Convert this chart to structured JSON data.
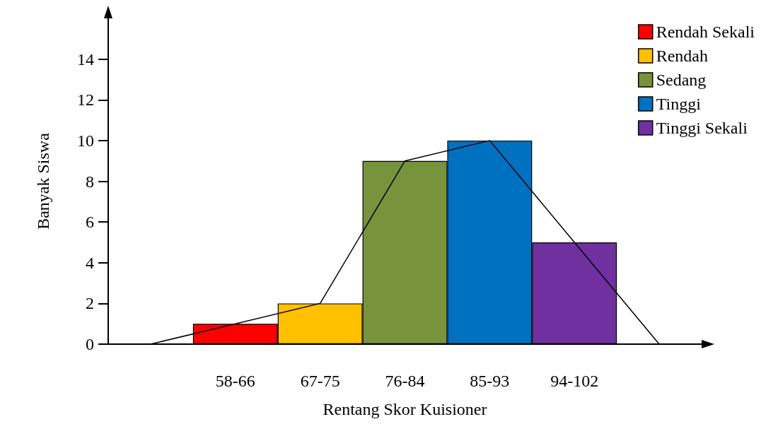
{
  "chart_data": {
    "type": "bar",
    "xlabel": "Rentang Skor Kuisioner",
    "ylabel": "Banyak Siswa",
    "categories": [
      null,
      "58-66",
      "67-75",
      "76-84",
      "85-93",
      "94-102",
      null
    ],
    "stacked": true,
    "series": [
      {
        "name": "Rendah Sekali",
        "color": "#ff0000",
        "values": [
          null,
          1,
          null,
          null,
          null,
          null,
          null
        ]
      },
      {
        "name": "Rendah",
        "color": "#ffc000",
        "values": [
          null,
          null,
          2,
          null,
          null,
          null,
          null
        ]
      },
      {
        "name": "Sedang",
        "color": "#77933c",
        "values": [
          null,
          null,
          null,
          9,
          null,
          null,
          null
        ]
      },
      {
        "name": "Tinggi",
        "color": "#0070c0",
        "values": [
          null,
          null,
          null,
          null,
          10,
          null,
          null
        ]
      },
      {
        "name": "Tinggi Sekali",
        "color": "#7030a0",
        "values": [
          null,
          null,
          null,
          null,
          null,
          5,
          null
        ]
      },
      {
        "type": "line",
        "color": "#000000",
        "values": [
          0,
          1,
          2,
          9,
          10,
          5,
          0
        ]
      }
    ],
    "ylim": [
      0,
      16
    ],
    "yticks": [
      0,
      2,
      4,
      6,
      8,
      10,
      12,
      14
    ],
    "grid": false,
    "legend": "top right",
    "marker": "none",
    "line_style": "solid"
  }
}
